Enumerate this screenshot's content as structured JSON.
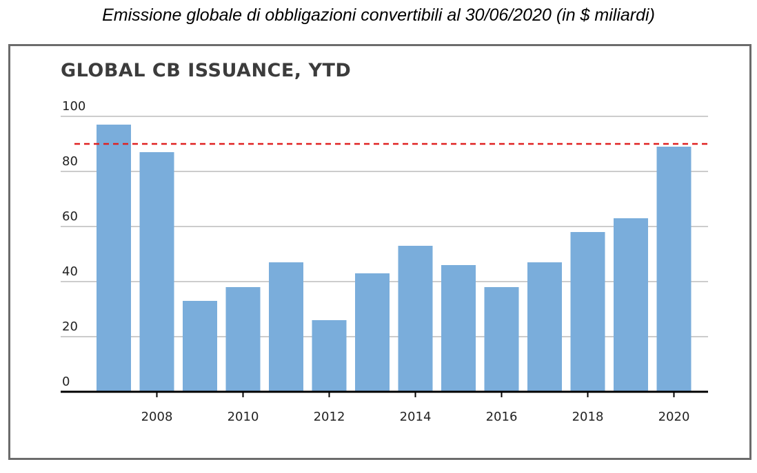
{
  "caption": "Emissione globale di obbligazioni convertibili al 30/06/2020 (in $ miliardi)",
  "chart_data": {
    "type": "bar",
    "title": "GLOBAL CB ISSUANCE, YTD",
    "xlabel": "",
    "ylabel": "",
    "categories": [
      "2007",
      "2008",
      "2009",
      "2010",
      "2011",
      "2012",
      "2013",
      "2014",
      "2015",
      "2016",
      "2017",
      "2018",
      "2019",
      "2020"
    ],
    "values": [
      97,
      87,
      33,
      38,
      47,
      26,
      43,
      53,
      46,
      38,
      47,
      58,
      63,
      89
    ],
    "x_tick_labels": [
      "2008",
      "2010",
      "2012",
      "2014",
      "2016",
      "2018",
      "2020"
    ],
    "y_ticks": [
      0,
      20,
      40,
      60,
      80,
      100
    ],
    "ylim": [
      0,
      100
    ],
    "grid": true,
    "reference_line": {
      "value": 90,
      "style": "dashed",
      "color": "#e02020"
    },
    "bar_color": "#7aaddb",
    "grid_color": "#cccccc",
    "axis_color": "#000000"
  }
}
